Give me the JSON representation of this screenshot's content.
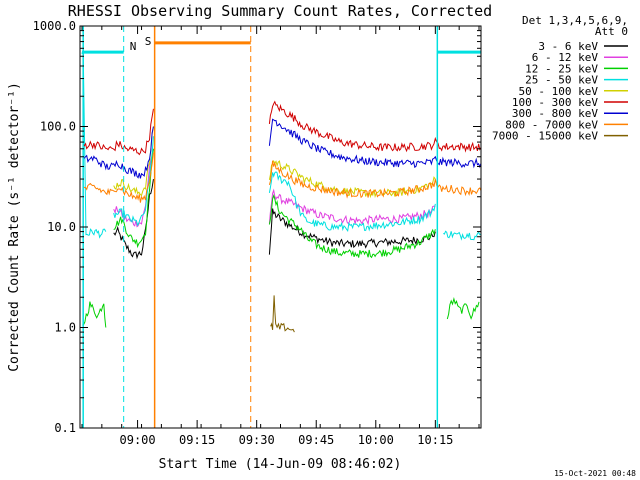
{
  "chart_data": {
    "type": "line",
    "title": "RHESSI Observing Summary Count Rates, Corrected",
    "xlabel": "Start Time (14-Jun-09 08:46:02)",
    "ylabel": "Corrected Count Rate (s⁻¹ detector⁻¹)",
    "yscale": "log",
    "xlim_minutes": [
      -0.5,
      100.5
    ],
    "ylim": [
      0.1,
      1000
    ],
    "x_ticks": [
      {
        "minutes": 14,
        "label": "09:00"
      },
      {
        "minutes": 29,
        "label": "09:15"
      },
      {
        "minutes": 44,
        "label": "09:30"
      },
      {
        "minutes": 59,
        "label": "09:45"
      },
      {
        "minutes": 74,
        "label": "10:00"
      },
      {
        "minutes": 89,
        "label": "10:15"
      }
    ],
    "y_ticks": [
      {
        "value": 0.1,
        "label": "0.1"
      },
      {
        "value": 1,
        "label": "1.0"
      },
      {
        "value": 10,
        "label": "10.0"
      },
      {
        "value": 100,
        "label": "100.0"
      },
      {
        "value": 1000,
        "label": "1000.0"
      }
    ],
    "legend_header": [
      "Det 1,3,4,5,6,9,",
      "Att 0"
    ],
    "legend_position": "right",
    "series": [
      {
        "name": "3 - 6 keV",
        "color": "#000000",
        "x": [
          0,
          3,
          6,
          8,
          9,
          11,
          13,
          15,
          16,
          17,
          18,
          18.2,
          47,
          47.2,
          48,
          50,
          53,
          56,
          60,
          63,
          66,
          70,
          75,
          80,
          85,
          88,
          89,
          89.5
        ],
        "y": [
          null,
          null,
          null,
          8.5,
          9,
          6.5,
          5.2,
          5.5,
          9,
          20,
          30,
          null,
          null,
          5.5,
          14,
          12,
          10,
          8.5,
          7.5,
          7,
          6.8,
          6.8,
          7,
          7.2,
          7.5,
          8,
          9,
          null
        ]
      },
      {
        "name": "6 - 12 keV",
        "color": "#e040e0",
        "x": [
          0,
          6,
          8,
          9,
          11,
          13,
          15,
          16,
          17,
          18,
          18.2,
          47,
          47.2,
          48,
          50,
          53,
          56,
          60,
          65,
          70,
          75,
          80,
          85,
          88,
          89,
          89.5
        ],
        "y": [
          null,
          null,
          14,
          15,
          12,
          11,
          11,
          16,
          40,
          60,
          null,
          null,
          10,
          22,
          19,
          17,
          15,
          13,
          12,
          11.5,
          12,
          12,
          13,
          14,
          16,
          null
        ]
      },
      {
        "name": "12 - 25 keV",
        "color": "#00d000",
        "x": [
          0,
          0.1,
          2,
          4,
          5.5,
          6,
          6.5,
          8,
          10,
          12,
          14,
          15,
          16,
          17,
          18,
          18.2,
          47,
          47.2,
          48,
          50,
          53,
          55,
          57,
          60,
          65,
          70,
          75,
          80,
          85,
          88,
          89,
          89.5,
          92,
          93,
          94,
          95,
          96,
          97,
          98,
          99,
          100
        ],
        "y": [
          null,
          1,
          1.7,
          1.3,
          1.8,
          1,
          null,
          10,
          12,
          8,
          7,
          7.5,
          9,
          25,
          60,
          null,
          null,
          10,
          20,
          14,
          11,
          9.5,
          7.5,
          6.3,
          5.5,
          5.4,
          5.5,
          6,
          7,
          8.5,
          9.5,
          null,
          1.2,
          1.8,
          1.8,
          1.5,
          1.5,
          1.7,
          1.3,
          1.5,
          1.8
        ]
      },
      {
        "name": "25 - 50 keV",
        "color": "#00e0e0",
        "x": [
          0,
          0.3,
          1,
          3,
          5,
          6,
          6.5,
          8,
          10,
          12,
          14,
          15,
          16,
          17,
          18,
          18.2,
          47,
          47.2,
          48,
          50,
          52,
          53,
          54,
          55,
          56,
          57,
          58,
          60,
          63,
          66,
          70,
          75,
          80,
          85,
          88,
          89,
          89.5,
          91,
          93,
          95,
          97,
          99,
          100.5
        ],
        "y": [
          550,
          550,
          8.5,
          9,
          8.5,
          9,
          null,
          13,
          14,
          12,
          11,
          12,
          15,
          30,
          80,
          null,
          null,
          20,
          35,
          30,
          28,
          22,
          17,
          14,
          12,
          11.5,
          11,
          10.5,
          10,
          10,
          10,
          10.5,
          11,
          12,
          14,
          17,
          null,
          8.5,
          8.5,
          8.2,
          8.5,
          8,
          8.5
        ]
      },
      {
        "name": "50 - 100 keV",
        "color": "#d0d000",
        "x": [
          6,
          6.5,
          8,
          10,
          12,
          14,
          15,
          16,
          17,
          18,
          18.2,
          47,
          47.2,
          48,
          50,
          53,
          56,
          60,
          65,
          70,
          75,
          80,
          85,
          88,
          89,
          89.5
        ],
        "y": [
          null,
          null,
          25,
          28,
          24,
          22,
          22,
          26,
          45,
          100,
          null,
          null,
          30,
          45,
          42,
          36,
          30,
          26,
          23,
          22,
          21.5,
          22,
          24,
          27,
          30,
          null
        ]
      },
      {
        "name": "100 - 300 keV",
        "color": "#d00000",
        "x": [
          0,
          0.3,
          3,
          6,
          8,
          9,
          11,
          13,
          15,
          16,
          17,
          18,
          18.2,
          47,
          47.2,
          48,
          50,
          53,
          56,
          60,
          65,
          70,
          75,
          80,
          85,
          88,
          89,
          90,
          93,
          96,
          99,
          100.5
        ],
        "y": [
          null,
          65,
          67,
          60,
          60,
          68,
          60,
          58,
          56,
          60,
          80,
          150,
          null,
          null,
          100,
          170,
          150,
          125,
          100,
          85,
          70,
          65,
          62,
          62,
          63,
          65,
          70,
          63,
          63,
          63,
          62,
          62
        ]
      },
      {
        "name": "300 - 800 keV",
        "color": "#0000d0",
        "x": [
          0,
          0.3,
          3,
          6,
          8,
          9,
          11,
          13,
          15,
          16,
          17,
          18,
          18.2,
          47,
          47.2,
          48,
          50,
          53,
          56,
          60,
          65,
          70,
          75,
          80,
          85,
          88,
          89,
          90,
          93,
          96,
          99,
          100.5
        ],
        "y": [
          null,
          47,
          48,
          40,
          40,
          44,
          38,
          35,
          33,
          36,
          50,
          100,
          null,
          null,
          60,
          120,
          105,
          85,
          70,
          58,
          50,
          46,
          44,
          43,
          43,
          44,
          47,
          44,
          44,
          43,
          43,
          43
        ]
      },
      {
        "name": "800 - 7000 keV",
        "color": "#ff8000",
        "x": [
          0,
          0.3,
          3,
          6,
          8,
          9,
          11,
          13,
          15,
          16,
          17,
          18,
          18.2,
          47,
          47.2,
          48,
          50,
          53,
          56,
          60,
          65,
          70,
          75,
          80,
          85,
          88,
          89,
          90,
          93,
          96,
          99,
          100.5
        ],
        "y": [
          null,
          24,
          25,
          22,
          22,
          26,
          22,
          20,
          19,
          20,
          30,
          55,
          null,
          null,
          25,
          42,
          36,
          30,
          26,
          24,
          22,
          21.5,
          21.5,
          22,
          24,
          26,
          28,
          24,
          24,
          23,
          23,
          23
        ]
      },
      {
        "name": "7000 - 15000 keV",
        "color": "#806000",
        "x": [
          47.5,
          48,
          48.4,
          48.8,
          49.5,
          50.5,
          51.5,
          52.5,
          53.5
        ],
        "y": [
          1,
          1,
          2,
          1,
          1,
          1,
          1,
          0.97,
          0.9
        ]
      }
    ],
    "annotations": [
      {
        "text": "N",
        "color": "#00e0e0"
      },
      {
        "text": "S",
        "color": "#ff8000"
      }
    ],
    "intervals": [
      {
        "kind": "night",
        "color": "#00e0e0",
        "start_minutes": 0.3,
        "end_minutes": 10.5,
        "level": 550
      },
      {
        "kind": "night",
        "color": "#00e0e0",
        "start_minutes": 89.5,
        "end_minutes": 100.5,
        "level": 550
      },
      {
        "kind": "saa",
        "color": "#ff8000",
        "start_minutes": 18.3,
        "end_minutes": 42.5,
        "level": 680
      }
    ],
    "footer_date": "15-Oct-2021 00:48"
  }
}
